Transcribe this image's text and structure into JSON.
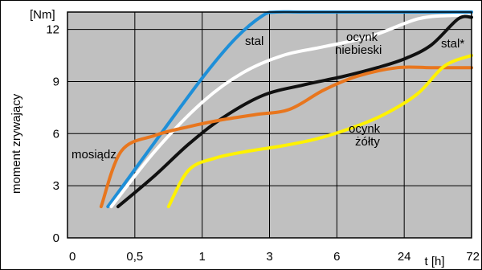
{
  "chart_data": {
    "type": "line",
    "title": "",
    "xlabel": "t [h]",
    "ylabel": "moment zrywający",
    "yunit": "[Nm]",
    "ylim": [
      0,
      13
    ],
    "yticks": [
      0,
      3,
      6,
      9,
      12
    ],
    "xtick_labels": [
      "0",
      "0,5",
      "1",
      "3",
      "6",
      "24",
      "72"
    ],
    "xtick_positions": [
      0,
      1,
      2,
      3,
      4,
      5,
      6
    ],
    "grid": true,
    "plot_background": "#C0C0C0",
    "series": [
      {
        "name": "stal",
        "color": "#1E8FD8",
        "x": [
          0.6,
          1.2,
          2.0,
          2.5,
          2.9,
          3.1,
          3.5,
          4.5,
          6.0
        ],
        "y": [
          1.8,
          5.0,
          9.2,
          11.5,
          12.8,
          13.0,
          13.0,
          13.0,
          13.0
        ]
      },
      {
        "name": "ocynk niebieski",
        "color": "#FFFFFF",
        "x": [
          0.65,
          1.3,
          2.0,
          2.6,
          3.2,
          3.8,
          4.5,
          5.2,
          5.7,
          6.0
        ],
        "y": [
          1.8,
          5.0,
          7.8,
          9.5,
          10.5,
          11.0,
          11.6,
          12.6,
          12.8,
          12.8
        ]
      },
      {
        "name": "stal*",
        "color": "#111111",
        "x": [
          0.75,
          1.3,
          1.8,
          2.3,
          2.9,
          3.5,
          4.1,
          4.6,
          5.0,
          5.4,
          5.8,
          6.0
        ],
        "y": [
          1.8,
          3.6,
          5.4,
          6.9,
          8.2,
          8.8,
          9.3,
          9.8,
          10.3,
          11.1,
          12.6,
          12.7
        ]
      },
      {
        "name": "mosiądz",
        "color": "#E8761E",
        "x": [
          0.5,
          0.8,
          1.3,
          1.8,
          2.3,
          2.8,
          3.3,
          3.8,
          4.3,
          4.9,
          5.4,
          6.0
        ],
        "y": [
          1.8,
          5.0,
          5.9,
          6.4,
          6.8,
          7.1,
          7.4,
          8.5,
          9.3,
          9.8,
          9.8,
          9.8
        ]
      },
      {
        "name": "ocynk żółty",
        "color": "#FFF200",
        "x": [
          1.5,
          1.8,
          2.2,
          2.7,
          3.2,
          3.7,
          4.2,
          4.7,
          5.2,
          5.6,
          6.0
        ],
        "y": [
          1.8,
          3.9,
          4.6,
          5.0,
          5.3,
          5.7,
          6.3,
          7.1,
          8.3,
          9.9,
          10.5
        ]
      }
    ],
    "annotations": [
      {
        "text": "stal"
      },
      {
        "text": "ocynk"
      },
      {
        "text": "niebieski"
      },
      {
        "text": "stal*"
      },
      {
        "text": "mosiądz"
      },
      {
        "text": "ocynk"
      },
      {
        "text": "żółty"
      }
    ]
  }
}
